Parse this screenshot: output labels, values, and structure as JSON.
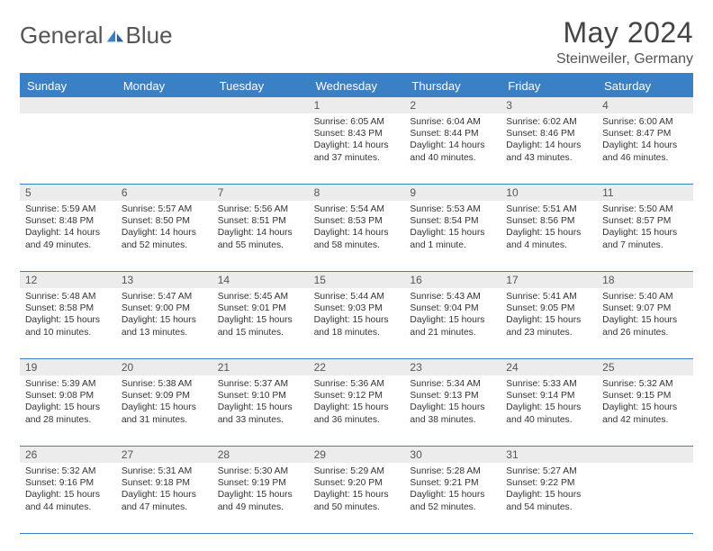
{
  "brand": {
    "part1": "General",
    "part2": "Blue"
  },
  "title": "May 2024",
  "location": "Steinweiler, Germany",
  "colors": {
    "header_bg": "#3b7fc4",
    "header_text": "#ffffff",
    "daynum_bg": "#ececec",
    "text": "#333333",
    "logo_mark": "#3b7fc4"
  },
  "day_labels": [
    "Sunday",
    "Monday",
    "Tuesday",
    "Wednesday",
    "Thursday",
    "Friday",
    "Saturday"
  ],
  "weeks": [
    [
      null,
      null,
      null,
      {
        "n": "1",
        "sunrise": "6:05 AM",
        "sunset": "8:43 PM",
        "daylight": "14 hours and 37 minutes."
      },
      {
        "n": "2",
        "sunrise": "6:04 AM",
        "sunset": "8:44 PM",
        "daylight": "14 hours and 40 minutes."
      },
      {
        "n": "3",
        "sunrise": "6:02 AM",
        "sunset": "8:46 PM",
        "daylight": "14 hours and 43 minutes."
      },
      {
        "n": "4",
        "sunrise": "6:00 AM",
        "sunset": "8:47 PM",
        "daylight": "14 hours and 46 minutes."
      }
    ],
    [
      {
        "n": "5",
        "sunrise": "5:59 AM",
        "sunset": "8:48 PM",
        "daylight": "14 hours and 49 minutes."
      },
      {
        "n": "6",
        "sunrise": "5:57 AM",
        "sunset": "8:50 PM",
        "daylight": "14 hours and 52 minutes."
      },
      {
        "n": "7",
        "sunrise": "5:56 AM",
        "sunset": "8:51 PM",
        "daylight": "14 hours and 55 minutes."
      },
      {
        "n": "8",
        "sunrise": "5:54 AM",
        "sunset": "8:53 PM",
        "daylight": "14 hours and 58 minutes."
      },
      {
        "n": "9",
        "sunrise": "5:53 AM",
        "sunset": "8:54 PM",
        "daylight": "15 hours and 1 minute."
      },
      {
        "n": "10",
        "sunrise": "5:51 AM",
        "sunset": "8:56 PM",
        "daylight": "15 hours and 4 minutes."
      },
      {
        "n": "11",
        "sunrise": "5:50 AM",
        "sunset": "8:57 PM",
        "daylight": "15 hours and 7 minutes."
      }
    ],
    [
      {
        "n": "12",
        "sunrise": "5:48 AM",
        "sunset": "8:58 PM",
        "daylight": "15 hours and 10 minutes."
      },
      {
        "n": "13",
        "sunrise": "5:47 AM",
        "sunset": "9:00 PM",
        "daylight": "15 hours and 13 minutes."
      },
      {
        "n": "14",
        "sunrise": "5:45 AM",
        "sunset": "9:01 PM",
        "daylight": "15 hours and 15 minutes."
      },
      {
        "n": "15",
        "sunrise": "5:44 AM",
        "sunset": "9:03 PM",
        "daylight": "15 hours and 18 minutes."
      },
      {
        "n": "16",
        "sunrise": "5:43 AM",
        "sunset": "9:04 PM",
        "daylight": "15 hours and 21 minutes."
      },
      {
        "n": "17",
        "sunrise": "5:41 AM",
        "sunset": "9:05 PM",
        "daylight": "15 hours and 23 minutes."
      },
      {
        "n": "18",
        "sunrise": "5:40 AM",
        "sunset": "9:07 PM",
        "daylight": "15 hours and 26 minutes."
      }
    ],
    [
      {
        "n": "19",
        "sunrise": "5:39 AM",
        "sunset": "9:08 PM",
        "daylight": "15 hours and 28 minutes."
      },
      {
        "n": "20",
        "sunrise": "5:38 AM",
        "sunset": "9:09 PM",
        "daylight": "15 hours and 31 minutes."
      },
      {
        "n": "21",
        "sunrise": "5:37 AM",
        "sunset": "9:10 PM",
        "daylight": "15 hours and 33 minutes."
      },
      {
        "n": "22",
        "sunrise": "5:36 AM",
        "sunset": "9:12 PM",
        "daylight": "15 hours and 36 minutes."
      },
      {
        "n": "23",
        "sunrise": "5:34 AM",
        "sunset": "9:13 PM",
        "daylight": "15 hours and 38 minutes."
      },
      {
        "n": "24",
        "sunrise": "5:33 AM",
        "sunset": "9:14 PM",
        "daylight": "15 hours and 40 minutes."
      },
      {
        "n": "25",
        "sunrise": "5:32 AM",
        "sunset": "9:15 PM",
        "daylight": "15 hours and 42 minutes."
      }
    ],
    [
      {
        "n": "26",
        "sunrise": "5:32 AM",
        "sunset": "9:16 PM",
        "daylight": "15 hours and 44 minutes."
      },
      {
        "n": "27",
        "sunrise": "5:31 AM",
        "sunset": "9:18 PM",
        "daylight": "15 hours and 47 minutes."
      },
      {
        "n": "28",
        "sunrise": "5:30 AM",
        "sunset": "9:19 PM",
        "daylight": "15 hours and 49 minutes."
      },
      {
        "n": "29",
        "sunrise": "5:29 AM",
        "sunset": "9:20 PM",
        "daylight": "15 hours and 50 minutes."
      },
      {
        "n": "30",
        "sunrise": "5:28 AM",
        "sunset": "9:21 PM",
        "daylight": "15 hours and 52 minutes."
      },
      {
        "n": "31",
        "sunrise": "5:27 AM",
        "sunset": "9:22 PM",
        "daylight": "15 hours and 54 minutes."
      },
      null
    ]
  ]
}
